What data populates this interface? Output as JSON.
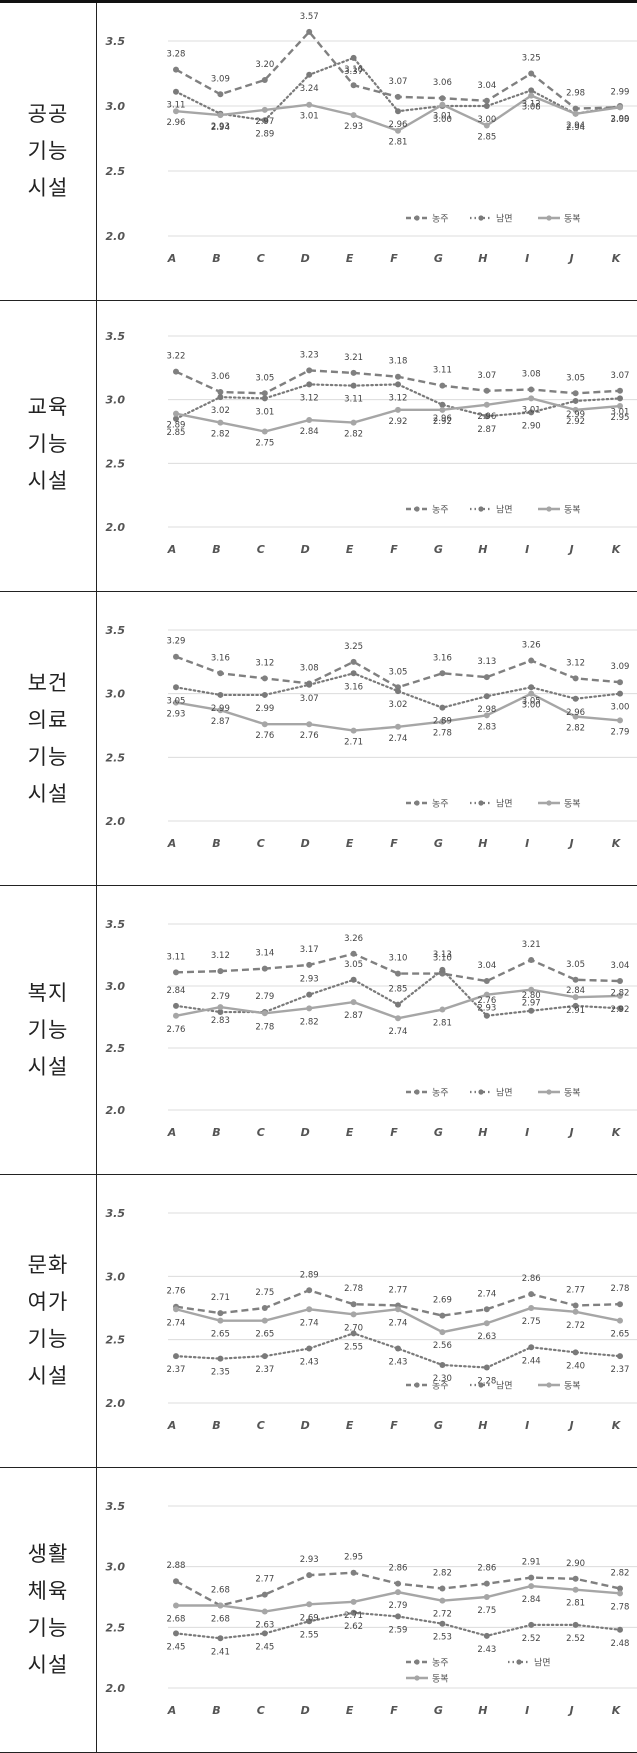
{
  "series_styles": [
    {
      "color": "#808080",
      "dash": "7 4",
      "width": 2.4,
      "marker": "circle"
    },
    {
      "color": "#7a7a7a",
      "dash": "1.5 3",
      "width": 2.2,
      "marker": "circle"
    },
    {
      "color": "#a6a6a6",
      "dash": "",
      "width": 2.4,
      "marker": "circle"
    }
  ],
  "chart_data": [
    {
      "type": "line",
      "row_label": [
        "공공",
        "기능",
        "시설"
      ],
      "categories": [
        "A",
        "B",
        "C",
        "D",
        "E",
        "F",
        "G",
        "H",
        "I",
        "J",
        "K"
      ],
      "y_ticks": [
        "3.5",
        "3.0",
        "2.5",
        "2.0"
      ],
      "ylim": [
        2.0,
        3.6
      ],
      "grid": true,
      "legend_placement": "bottom-right",
      "series": [
        {
          "name": "농주",
          "values": [
            3.28,
            3.09,
            3.2,
            3.57,
            3.16,
            3.07,
            3.06,
            3.04,
            3.25,
            2.98,
            2.99
          ],
          "labels": [
            "3.28",
            "3.09",
            "3.20",
            "3.57",
            "3.16",
            "3.07",
            "3.06",
            "3.04",
            "3.25",
            "2.98",
            "2.99"
          ]
        },
        {
          "name": "남면",
          "values": [
            3.11,
            2.94,
            2.89,
            3.24,
            3.37,
            2.96,
            3.0,
            3.0,
            3.12,
            2.94,
            3.0
          ],
          "labels": [
            "3.11",
            "2.94",
            "2.89",
            "3.24",
            "3.37",
            "2.96",
            "3.00",
            "3.00",
            "3.12",
            "2.94",
            "3.00"
          ]
        },
        {
          "name": "동복",
          "values": [
            2.96,
            2.93,
            2.97,
            3.01,
            2.93,
            2.81,
            3.01,
            2.85,
            3.08,
            2.94,
            2.99
          ],
          "labels": [
            "2.96",
            "2.93",
            "2.97",
            "3.01",
            "2.93",
            "2.81",
            "3.01",
            "2.85",
            "3.08",
            "2.94",
            "2.99"
          ]
        }
      ]
    },
    {
      "type": "line",
      "row_label": [
        "교육",
        "기능",
        "시설"
      ],
      "categories": [
        "A",
        "B",
        "C",
        "D",
        "E",
        "F",
        "G",
        "H",
        "I",
        "J",
        "K"
      ],
      "y_ticks": [
        "3.5",
        "3.0",
        "2.5",
        "2.0"
      ],
      "ylim": [
        2.0,
        3.5
      ],
      "grid": true,
      "legend_placement": "bottom-right",
      "series": [
        {
          "name": "농주",
          "values": [
            3.22,
            3.06,
            3.05,
            3.23,
            3.21,
            3.18,
            3.11,
            3.07,
            3.08,
            3.05,
            3.07
          ],
          "labels": [
            "3.22",
            "3.06",
            "3.05",
            "3.23",
            "3.21",
            "3.18",
            "3.11",
            "3.07",
            "3.08",
            "3.05",
            "3.07"
          ]
        },
        {
          "name": "남면",
          "values": [
            2.85,
            3.02,
            3.01,
            3.12,
            3.11,
            3.12,
            2.96,
            2.87,
            2.9,
            2.99,
            3.01
          ],
          "labels": [
            "2.85",
            "3.02",
            "3.01",
            "3.12",
            "3.11",
            "3.12",
            "2.96",
            "2.87",
            "2.90",
            "2.99",
            "3.01"
          ]
        },
        {
          "name": "동복",
          "values": [
            2.89,
            2.82,
            2.75,
            2.84,
            2.82,
            2.92,
            2.92,
            2.96,
            3.01,
            2.92,
            2.95
          ],
          "labels": [
            "2.89",
            "2.82",
            "2.75",
            "2.84",
            "2.82",
            "2.92",
            "2.92",
            "2.96",
            "3.01",
            "2.92",
            "2.95"
          ]
        }
      ]
    },
    {
      "type": "line",
      "row_label": [
        "보건",
        "의료",
        "기능",
        "시설"
      ],
      "categories": [
        "A",
        "B",
        "C",
        "D",
        "E",
        "F",
        "G",
        "H",
        "I",
        "J",
        "K"
      ],
      "y_ticks": [
        "3.5",
        "3.0",
        "2.5",
        "2.0"
      ],
      "ylim": [
        2.0,
        3.5
      ],
      "grid": true,
      "legend_placement": "bottom-right",
      "series": [
        {
          "name": "농주",
          "values": [
            3.29,
            3.16,
            3.12,
            3.08,
            3.25,
            3.05,
            3.16,
            3.13,
            3.26,
            3.12,
            3.09
          ],
          "labels": [
            "3.29",
            "3.16",
            "3.12",
            "3.08",
            "3.25",
            "3.05",
            "3.16",
            "3.13",
            "3.26",
            "3.12",
            "3.09"
          ]
        },
        {
          "name": "남면",
          "values": [
            3.05,
            2.99,
            2.99,
            3.07,
            3.16,
            3.02,
            2.89,
            2.98,
            3.05,
            2.96,
            3.0
          ],
          "labels": [
            "3.05",
            "2.99",
            "2.99",
            "3.07",
            "3.16",
            "3.02",
            "2.89",
            "2.98",
            "3.05",
            "2.96",
            "3.00"
          ]
        },
        {
          "name": "동복",
          "values": [
            2.93,
            2.87,
            2.76,
            2.76,
            2.71,
            2.74,
            2.78,
            2.83,
            3.0,
            2.82,
            2.79
          ],
          "labels": [
            "2.93",
            "2.87",
            "2.76",
            "2.76",
            "2.71",
            "2.74",
            "2.78",
            "2.83",
            "3.00",
            "2.82",
            "2.79"
          ]
        }
      ]
    },
    {
      "type": "line",
      "row_label": [
        "복지",
        "기능",
        "시설"
      ],
      "categories": [
        "A",
        "B",
        "C",
        "D",
        "E",
        "F",
        "G",
        "H",
        "I",
        "J",
        "K"
      ],
      "y_ticks": [
        "3.5",
        "3.0",
        "2.5",
        "2.0"
      ],
      "ylim": [
        2.0,
        3.5
      ],
      "grid": true,
      "legend_placement": "bottom-right",
      "series": [
        {
          "name": "농주",
          "values": [
            3.11,
            3.12,
            3.14,
            3.17,
            3.26,
            3.1,
            3.1,
            3.04,
            3.21,
            3.05,
            3.04
          ],
          "labels": [
            "3.11",
            "3.12",
            "3.14",
            "3.17",
            "3.26",
            "3.10",
            "3.10",
            "3.04",
            "3.21",
            "3.05",
            "3.04"
          ]
        },
        {
          "name": "남면",
          "values": [
            2.84,
            2.79,
            2.79,
            2.93,
            3.05,
            2.85,
            3.13,
            2.76,
            2.8,
            2.84,
            2.82
          ],
          "labels": [
            "2.84",
            "2.79",
            "2.79",
            "2.93",
            "3.05",
            "2.85",
            "3.13",
            "2.76",
            "2.80",
            "2.84",
            "2.82"
          ]
        },
        {
          "name": "동복",
          "values": [
            2.76,
            2.83,
            2.78,
            2.82,
            2.87,
            2.74,
            2.81,
            2.93,
            2.97,
            2.91,
            2.92
          ],
          "labels": [
            "2.76",
            "2.83",
            "2.78",
            "2.82",
            "2.87",
            "2.74",
            "2.81",
            "2.93",
            "2.97",
            "2.91",
            "2.92"
          ]
        }
      ]
    },
    {
      "type": "line",
      "row_label": [
        "문화",
        "여가",
        "기능",
        "시설"
      ],
      "categories": [
        "A",
        "B",
        "C",
        "D",
        "E",
        "F",
        "G",
        "H",
        "I",
        "J",
        "K"
      ],
      "y_ticks": [
        "3.5",
        "3.0",
        "2.5",
        "2.0"
      ],
      "ylim": [
        2.0,
        3.5
      ],
      "grid": true,
      "legend_placement": "bottom-right",
      "series": [
        {
          "name": "농주",
          "values": [
            2.76,
            2.71,
            2.75,
            2.89,
            2.78,
            2.77,
            2.69,
            2.74,
            2.86,
            2.77,
            2.78
          ],
          "labels": [
            "2.76",
            "2.71",
            "2.75",
            "2.89",
            "2.78",
            "2.77",
            "2.69",
            "2.74",
            "2.86",
            "2.77",
            "2.78"
          ]
        },
        {
          "name": "남면",
          "values": [
            2.37,
            2.35,
            2.37,
            2.43,
            2.55,
            2.43,
            2.3,
            2.28,
            2.44,
            2.4,
            2.37
          ],
          "labels": [
            "2.37",
            "2.35",
            "2.37",
            "2.43",
            "2.55",
            "2.43",
            "2.30",
            "2.28",
            "2.44",
            "2.40",
            "2.37"
          ]
        },
        {
          "name": "동복",
          "values": [
            2.74,
            2.65,
            2.65,
            2.74,
            2.7,
            2.74,
            2.56,
            2.63,
            2.75,
            2.72,
            2.65
          ],
          "labels": [
            "2.74",
            "2.65",
            "2.65",
            "2.74",
            "2.70",
            "2.74",
            "2.56",
            "2.63",
            "2.75",
            "2.72",
            "2.65"
          ]
        }
      ]
    },
    {
      "type": "line",
      "row_label": [
        "생활",
        "체육",
        "기능",
        "시설"
      ],
      "categories": [
        "A",
        "B",
        "C",
        "D",
        "E",
        "F",
        "G",
        "H",
        "I",
        "J",
        "K"
      ],
      "y_ticks": [
        "3.5",
        "3.0",
        "2.5",
        "2.0"
      ],
      "ylim": [
        2.0,
        3.5
      ],
      "grid": true,
      "legend_placement": "bottom-right",
      "series": [
        {
          "name": "농주",
          "values": [
            2.88,
            2.68,
            2.77,
            2.93,
            2.95,
            2.86,
            2.82,
            2.86,
            2.91,
            2.9,
            2.82
          ],
          "labels": [
            "2.88",
            "2.68",
            "2.77",
            "2.93",
            "2.95",
            "2.86",
            "2.82",
            "2.86",
            "2.91",
            "2.90",
            "2.82"
          ]
        },
        {
          "name": "남면",
          "values": [
            2.45,
            2.41,
            2.45,
            2.55,
            2.62,
            2.59,
            2.53,
            2.43,
            2.52,
            2.52,
            2.48
          ],
          "labels": [
            "2.45",
            "2.41",
            "2.45",
            "2.55",
            "2.62",
            "2.59",
            "2.53",
            "2.43",
            "2.52",
            "2.52",
            "2.48"
          ]
        },
        {
          "name": "동복",
          "values": [
            2.68,
            2.68,
            2.63,
            2.69,
            2.71,
            2.79,
            2.72,
            2.75,
            2.84,
            2.81,
            2.78
          ],
          "labels": [
            "2.68",
            "2.68",
            "2.63",
            "2.69",
            "2.71",
            "2.79",
            "2.72",
            "2.75",
            "2.84",
            "2.81",
            "2.78"
          ]
        }
      ]
    }
  ]
}
